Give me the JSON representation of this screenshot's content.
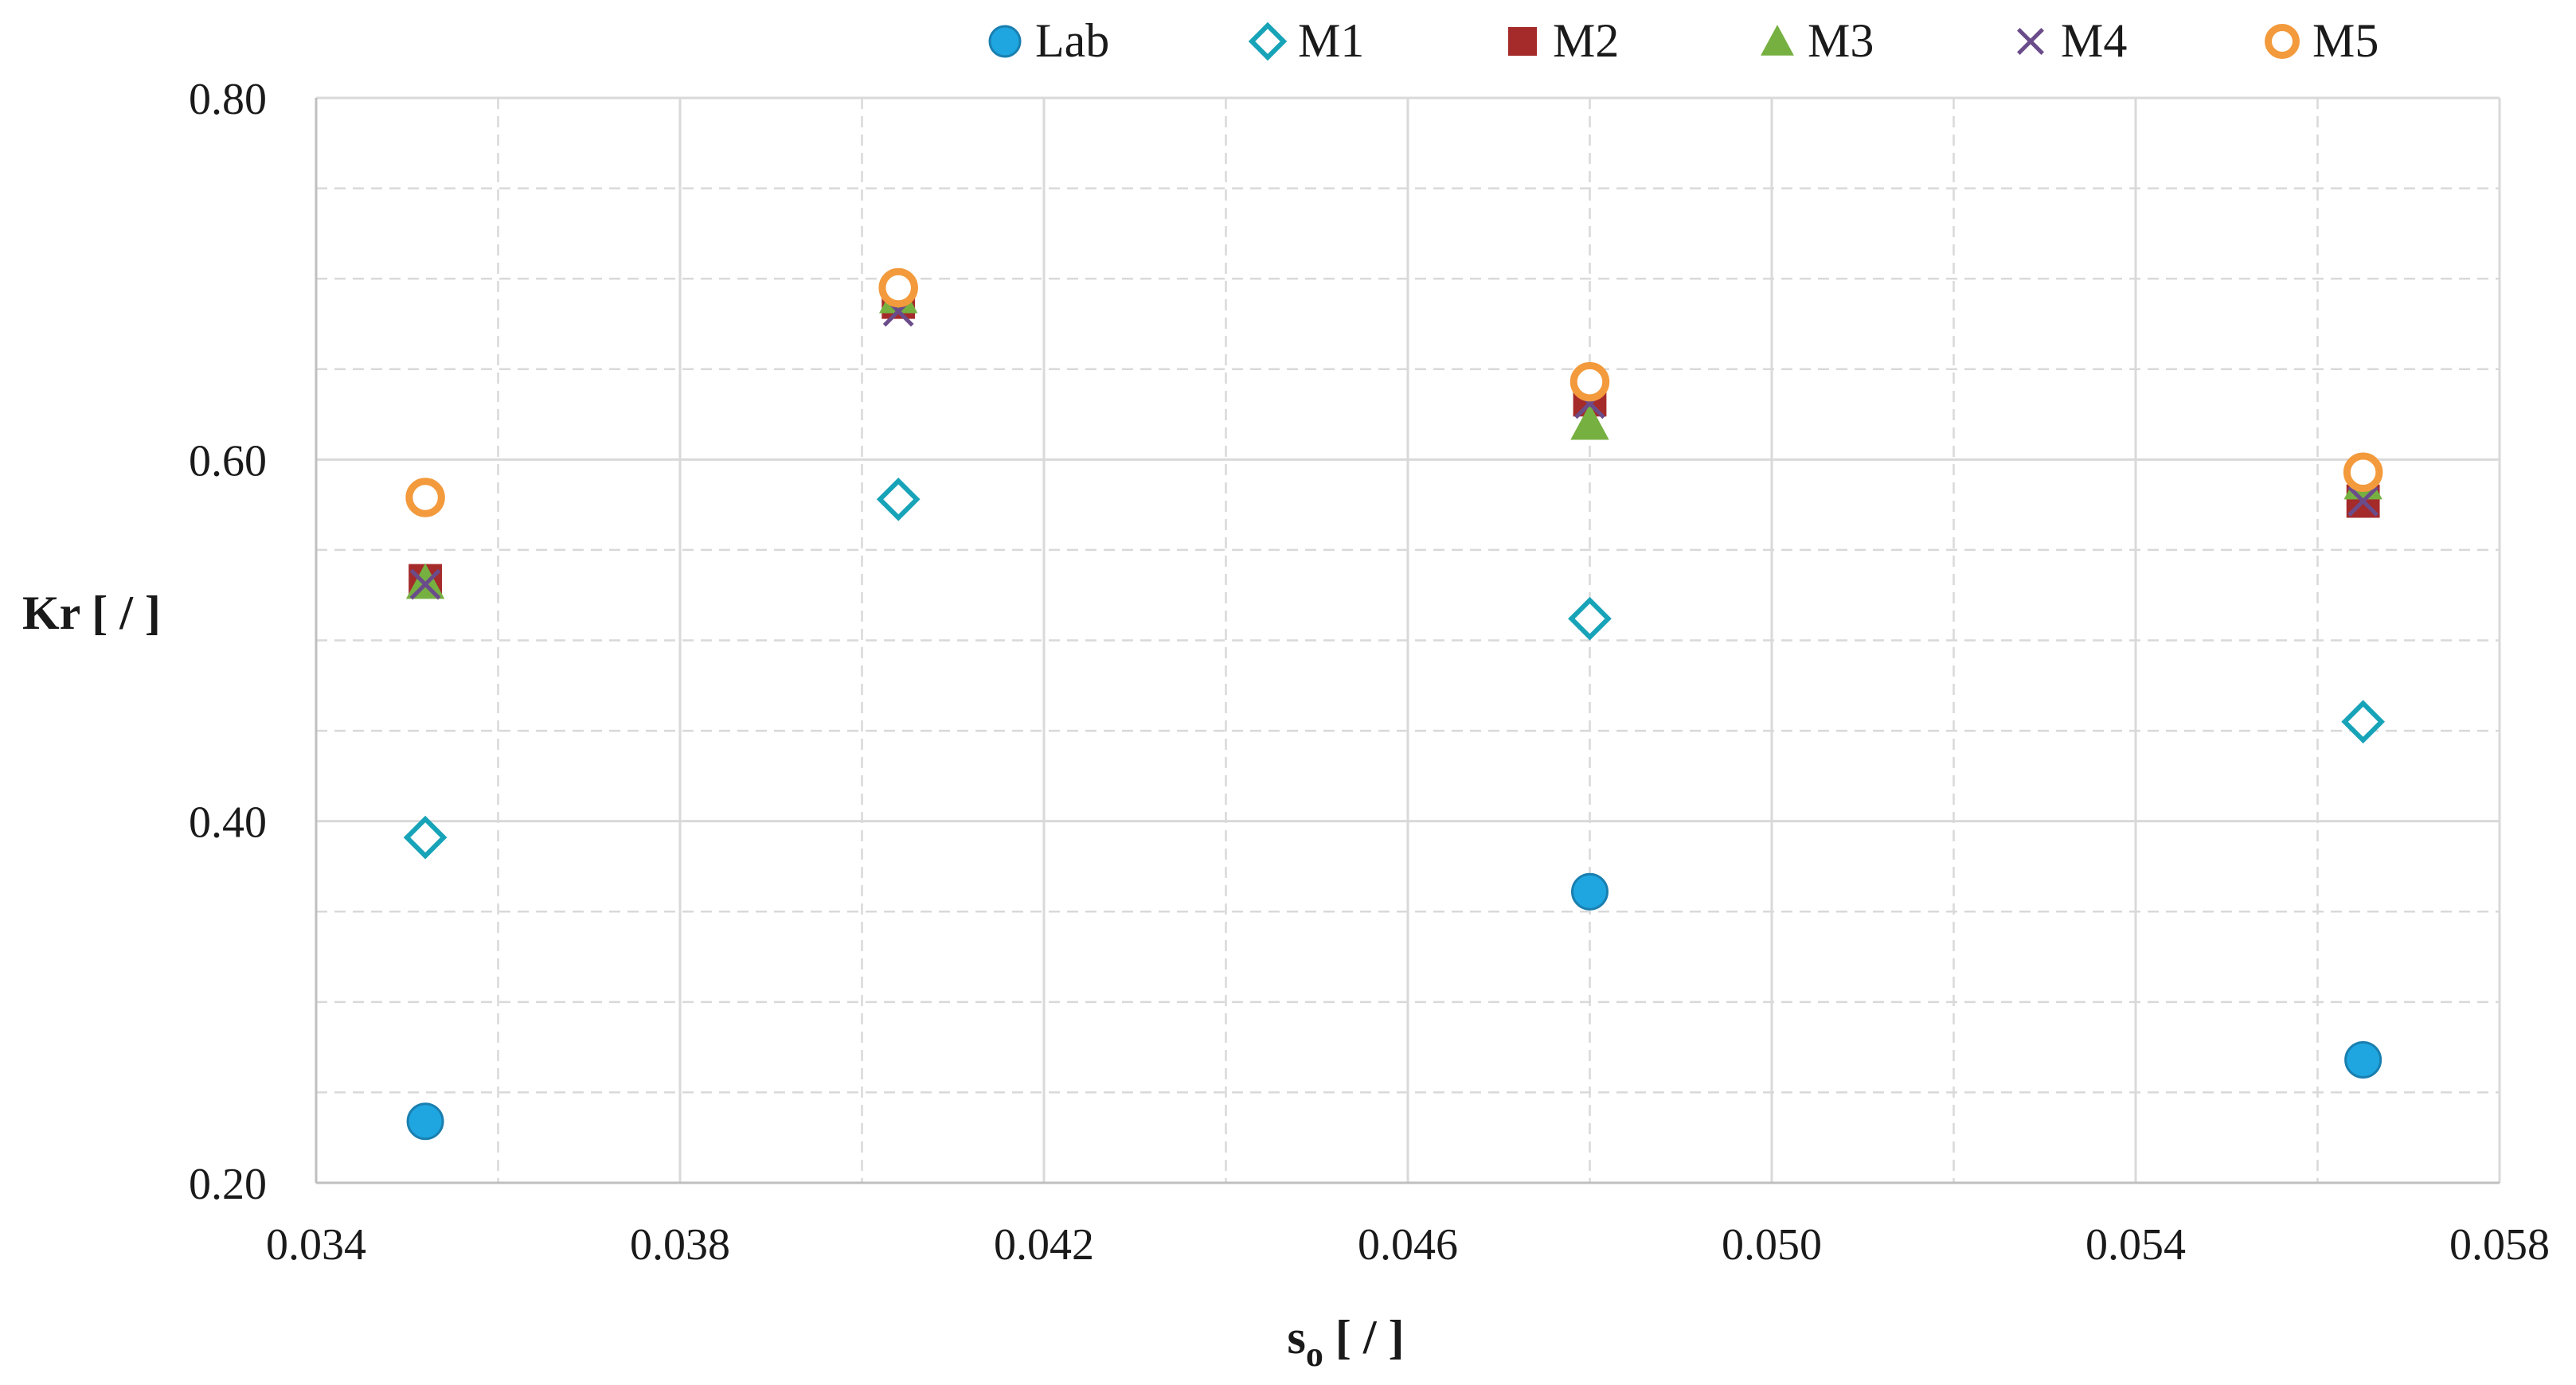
{
  "chart_data": {
    "type": "scatter",
    "xlabel_main": "s",
    "xlabel_sub": "o",
    "xlabel_unit": " [ / ]",
    "ylabel": "Kr [ / ]",
    "xlim": [
      0.034,
      0.058
    ],
    "ylim": [
      0.2,
      0.8
    ],
    "x_ticks": [
      "0.034",
      "0.038",
      "0.042",
      "0.046",
      "0.050",
      "0.054",
      "0.058"
    ],
    "y_ticks": [
      "0.20",
      "0.40",
      "0.60",
      "0.80"
    ],
    "grid": "major solid, minor dashed",
    "legend_position": "top",
    "series": [
      {
        "name": "Lab",
        "marker": "circle-filled",
        "color": "#1fa6e0",
        "edge": "#1a7fb0",
        "points": [
          [
            0.0352,
            0.234
          ],
          [
            0.048,
            0.361
          ],
          [
            0.0565,
            0.268
          ]
        ]
      },
      {
        "name": "M1",
        "marker": "diamond-open",
        "color": "#17a3b8",
        "points": [
          [
            0.0352,
            0.391
          ],
          [
            0.0404,
            0.578
          ],
          [
            0.048,
            0.512
          ],
          [
            0.0565,
            0.455
          ]
        ]
      },
      {
        "name": "M2",
        "marker": "square-filled",
        "color": "#a52a2a",
        "points": [
          [
            0.0352,
            0.533
          ],
          [
            0.0404,
            0.687
          ],
          [
            0.048,
            0.633
          ],
          [
            0.0565,
            0.577
          ]
        ]
      },
      {
        "name": "M3",
        "marker": "triangle-filled",
        "color": "#76b041",
        "points": [
          [
            0.0352,
            0.532
          ],
          [
            0.0404,
            0.69
          ],
          [
            0.048,
            0.62
          ],
          [
            0.0565,
            0.587
          ]
        ]
      },
      {
        "name": "M4",
        "marker": "x",
        "color": "#6b4c8a",
        "points": [
          [
            0.0352,
            0.531
          ],
          [
            0.0404,
            0.682
          ],
          [
            0.048,
            0.631
          ],
          [
            0.0565,
            0.577
          ]
        ]
      },
      {
        "name": "M5",
        "marker": "circle-open",
        "color": "#f39a3c",
        "points": [
          [
            0.0352,
            0.579
          ],
          [
            0.0404,
            0.695
          ],
          [
            0.048,
            0.643
          ],
          [
            0.0565,
            0.593
          ]
        ]
      }
    ]
  }
}
